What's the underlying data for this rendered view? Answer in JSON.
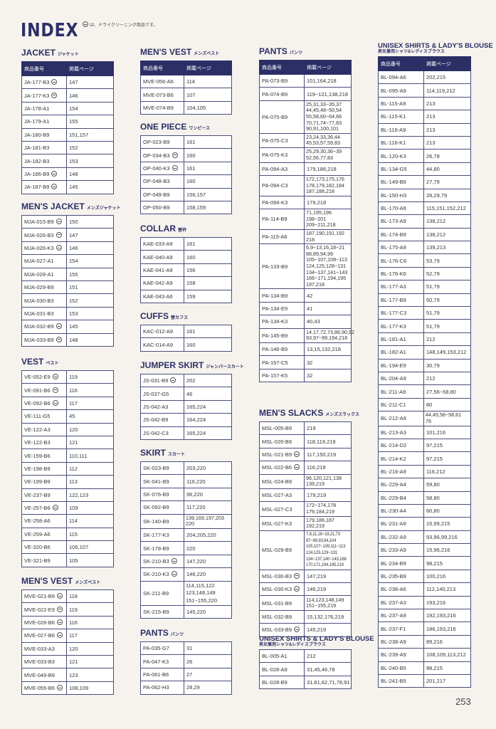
{
  "header": {
    "logo": "INDEX",
    "note": "は、ドライクリーニング商品です。"
  },
  "table_header": {
    "code": "商品番号",
    "pages": "掲載ページ"
  },
  "page_number": "253",
  "colors": {
    "navy": "#2c2f66",
    "background": "#f6f3ee"
  },
  "columns": [
    [
      {
        "title": "JACKET",
        "subtitle": "ジャケット",
        "header": true,
        "rows": [
          {
            "code": "JA-177-B3",
            "pages": "147",
            "dry": true
          },
          {
            "code": "JA-177-K3",
            "pages": "146",
            "dry": true
          },
          {
            "code": "JA-178-A1",
            "pages": "154"
          },
          {
            "code": "JA-179-A1",
            "pages": "155"
          },
          {
            "code": "JA-180-B9",
            "pages": "151,157"
          },
          {
            "code": "JA-181-B3",
            "pages": "152"
          },
          {
            "code": "JA-182-B3",
            "pages": "153"
          },
          {
            "code": "JA-186-B9",
            "pages": "148",
            "dry": true
          },
          {
            "code": "JA-187-B9",
            "pages": "145",
            "dry": true
          }
        ]
      },
      {
        "title": "MEN'S JACKET",
        "subtitle": "メンズジャケット",
        "rows": [
          {
            "code": "MJA-015-B9",
            "pages": "150",
            "dry": true
          },
          {
            "code": "MJA-026-B3",
            "pages": "147",
            "dry": true
          },
          {
            "code": "MJA-026-K3",
            "pages": "146",
            "dry": true
          },
          {
            "code": "MJA-027-A1",
            "pages": "154"
          },
          {
            "code": "MJA-028-A1",
            "pages": "155"
          },
          {
            "code": "MJA-029-B9",
            "pages": "151"
          },
          {
            "code": "MJA-030-B3",
            "pages": "152"
          },
          {
            "code": "MJA-031-B3",
            "pages": "153"
          },
          {
            "code": "MJA-032-B9",
            "pages": "145",
            "dry": true
          },
          {
            "code": "MJA-033-B9",
            "pages": "148",
            "dry": true
          }
        ]
      },
      {
        "title": "VEST",
        "subtitle": "ベスト",
        "rows": [
          {
            "code": "VE-052-E9",
            "pages": "119",
            "dry": true
          },
          {
            "code": "VE-091-B6",
            "pages": "116",
            "dry": true
          },
          {
            "code": "VE-092-B6",
            "pages": "117",
            "dry": true
          },
          {
            "code": "VE-111-G5",
            "pages": "45"
          },
          {
            "code": "VE-122-A3",
            "pages": "120"
          },
          {
            "code": "VE-122-B3",
            "pages": "121"
          },
          {
            "code": "VE-159-B6",
            "pages": "110,111"
          },
          {
            "code": "VE-198-B9",
            "pages": "112"
          },
          {
            "code": "VE-199-B9",
            "pages": "113"
          },
          {
            "code": "VE-237-B9",
            "pages": "122,123"
          },
          {
            "code": "VE-257-B6",
            "pages": "109",
            "dry": true
          },
          {
            "code": "VE-258-A6",
            "pages": "114"
          },
          {
            "code": "VE-259-A6",
            "pages": "115"
          },
          {
            "code": "VE-320-B6",
            "pages": "106,107"
          },
          {
            "code": "VE-321-B9",
            "pages": "105"
          }
        ]
      },
      {
        "title": "MEN'S VEST",
        "subtitle": "メンズベスト",
        "rows": [
          {
            "code": "MVE-021-B9",
            "pages": "118",
            "dry": true
          },
          {
            "code": "MVE-022-E9",
            "pages": "119",
            "dry": true
          },
          {
            "code": "MVE-026-B6",
            "pages": "116",
            "dry": true
          },
          {
            "code": "MVE-027-B6",
            "pages": "117",
            "dry": true
          },
          {
            "code": "MVE-033-A3",
            "pages": "120"
          },
          {
            "code": "MVE-033-B3",
            "pages": "121"
          },
          {
            "code": "MVE-049-B9",
            "pages": "123"
          },
          {
            "code": "MVE-055-B6",
            "pages": "108,109",
            "dry": true
          }
        ]
      }
    ],
    [
      {
        "title": "MEN'S VEST",
        "subtitle": "メンズベスト",
        "header": true,
        "rows": [
          {
            "code": "MVE-056-A6",
            "pages": "114"
          },
          {
            "code": "MVE-073-B6",
            "pages": "107"
          },
          {
            "code": "MVE-074-B9",
            "pages": "104,105"
          }
        ]
      },
      {
        "title": "ONE PIECE",
        "subtitle": "ワンピース",
        "rows": [
          {
            "code": "OP-023-B9",
            "pages": "161"
          },
          {
            "code": "OP-034-B3",
            "pages": "160",
            "dry": true
          },
          {
            "code": "OP-040-K3",
            "pages": "161",
            "dry": true
          },
          {
            "code": "OP-048-B3",
            "pages": "160"
          },
          {
            "code": "OP-049-B9",
            "pages": "156,157"
          },
          {
            "code": "OP-050-B9",
            "pages": "158,159"
          }
        ]
      },
      {
        "title": "COLLAR",
        "subtitle": "替衿",
        "rows": [
          {
            "code": "KAE-033-A9",
            "pages": "161"
          },
          {
            "code": "KAE-040-A9",
            "pages": "160"
          },
          {
            "code": "KAE-041-A9",
            "pages": "156"
          },
          {
            "code": "KAE-042-A9",
            "pages": "158"
          },
          {
            "code": "KAE-043-A6",
            "pages": "159"
          }
        ]
      },
      {
        "title": "CUFFS",
        "subtitle": "替カフス",
        "rows": [
          {
            "code": "KAC-012-A9",
            "pages": "161"
          },
          {
            "code": "KAC-014-A9",
            "pages": "160"
          }
        ]
      },
      {
        "title": "JUMPER SKIRT",
        "subtitle": "ジャンパースカート",
        "rows": [
          {
            "code": "JS-031-B9",
            "pages": "202",
            "dry": true
          },
          {
            "code": "JS-037-G5",
            "pages": "46"
          },
          {
            "code": "JS-042-A3",
            "pages": "165,224"
          },
          {
            "code": "JS-042-B9",
            "pages": "164,224"
          },
          {
            "code": "JS-042-C3",
            "pages": "165,224"
          }
        ]
      },
      {
        "title": "SKIRT",
        "subtitle": "スカート",
        "rows": [
          {
            "code": "SK-023-B9",
            "pages": "203,220"
          },
          {
            "code": "SK-041-B9",
            "pages": "116,220"
          },
          {
            "code": "SK-076-B9",
            "pages": "96,220"
          },
          {
            "code": "SK-092-B9",
            "pages": "117,220"
          },
          {
            "code": "SK-140-B9",
            "pages": "139,169,197,203\n220"
          },
          {
            "code": "SK-177-K3",
            "pages": "204,205,220"
          },
          {
            "code": "SK-178-B9",
            "pages": "220"
          },
          {
            "code": "SK-210-B3",
            "pages": "147,220",
            "dry": true
          },
          {
            "code": "SK-210-K3",
            "pages": "146,220",
            "dry": true
          },
          {
            "code": "SK-211-B9",
            "pages": "114,115,122\n123,148,149\n151~155,220"
          },
          {
            "code": "SK-215-B9",
            "pages": "145,220"
          }
        ]
      },
      {
        "title": "PANTS",
        "subtitle": "パンツ",
        "rows": [
          {
            "code": "PA-035-G7",
            "pages": "31"
          },
          {
            "code": "PA-047-K3",
            "pages": "26"
          },
          {
            "code": "PA-061-B6",
            "pages": "27"
          },
          {
            "code": "PA-062-H3",
            "pages": "28,29"
          }
        ]
      }
    ],
    [
      {
        "title": "PANTS",
        "subtitle": "パンツ",
        "header": true,
        "rows": [
          {
            "code": "PA-073-B9",
            "pages": "101,164,218"
          },
          {
            "code": "PA-074-B9",
            "pages": "119~121,138,218"
          },
          {
            "code": "PA-075-B9",
            "pages": "25,31,33~35,37\n44,45,48~50,54\n55,58,60~64,66\n70,71,74~77,83\n90,91,100,101"
          },
          {
            "code": "PA-075-C3",
            "pages": "23,24,33,36,44\n45,53,57,59,83"
          },
          {
            "code": "PA-075-K3",
            "pages": "25,29,30,36~39\n52,56,77,83"
          },
          {
            "code": "PA-094-A3",
            "pages": "179,186,218"
          },
          {
            "code": "PA-094-C3",
            "pages": "172,173,175,176\n178,179,182,184\n187,188,218"
          },
          {
            "code": "PA-094-K3",
            "pages": "179,218"
          },
          {
            "code": "PA-114-B9",
            "pages": "71,195,196\n198~201\n209~211,218"
          },
          {
            "code": "PA-115-A6",
            "pages": "187,190,191,192\n218"
          },
          {
            "code": "PA-133-B9",
            "pages": "6,9~13,16,18~21\n88,89,94,99\n105~107,109~113\n124,125,128~131\n134~137,141~143\n166~171,194,195\n197,218"
          },
          {
            "code": "PA-134-B9",
            "pages": "42"
          },
          {
            "code": "PA-134-E9",
            "pages": "41"
          },
          {
            "code": "PA-134-K3",
            "pages": "40,43"
          },
          {
            "code": "PA-145-B9",
            "pages": "14,17,72,73,86,90,92\n93,97~99,194,218"
          },
          {
            "code": "PA-146-B9",
            "pages": "13,15,132,218"
          },
          {
            "code": "PA-157-C5",
            "pages": "32"
          },
          {
            "code": "PA-157-K5",
            "pages": "32"
          }
        ]
      },
      {
        "title": "MEN'S SLACKS",
        "subtitle": "メンズスラックス",
        "rows": [
          {
            "code": "MSL-005-B9",
            "pages": "219"
          },
          {
            "code": "MSL-020-B9",
            "pages": "118,119,219"
          },
          {
            "code": "MSL-021-B9",
            "pages": "117,150,219",
            "dry": true
          },
          {
            "code": "MSL-022-B6",
            "pages": "116,219",
            "dry": true
          },
          {
            "code": "MSL-024-B9",
            "pages": "96,120,121,138\n139,219"
          },
          {
            "code": "MSL-027-A3",
            "pages": "179,219"
          },
          {
            "code": "MSL-027-C3",
            "pages": "172~174,178\n179,184,219"
          },
          {
            "code": "MSL-027-K3",
            "pages": "179,186,187\n192,219"
          },
          {
            "code": "MSL-029-B9",
            "pages": "7,8,11,16~19,21,73\n87~89,93,94,104\n105,107~109,111~113\n124,125,129~131\n134~137,140~143,168\n170,171,194,195,219"
          },
          {
            "code": "MSL-030-B3",
            "pages": "147,219",
            "dry": true
          },
          {
            "code": "MSL-030-K3",
            "pages": "146,219",
            "dry": true
          },
          {
            "code": "MSL-031-B9",
            "pages": "114,123,148,149\n151~155,219"
          },
          {
            "code": "MSL-032-B9",
            "pages": "15,132,176,219"
          },
          {
            "code": "MSL-033-B9",
            "pages": "145,219",
            "dry": true
          }
        ]
      },
      {
        "title": "UNISEX SHIRTS & LADY'S BLOUSE",
        "subtitle": "男女兼用シャツ&レディスブラウス",
        "small": true,
        "rows": [
          {
            "code": "BL-005-A1",
            "pages": "212"
          },
          {
            "code": "BL-028-A9",
            "pages": "31,45,46,78"
          },
          {
            "code": "BL-028-B9",
            "pages": "31,61,62,71,78,91"
          }
        ]
      }
    ],
    [
      {
        "title": "UNISEX SHIRTS & LADY'S BLOUSE",
        "subtitle": "男女兼用シャツ&レディスブラウス",
        "small": true,
        "header": true,
        "rows": [
          {
            "code": "BL-094-A6",
            "pages": "202,215"
          },
          {
            "code": "BL-095-A9",
            "pages": "114,119,212"
          },
          {
            "code": "BL-115-A9",
            "pages": "213"
          },
          {
            "code": "BL-115-K1",
            "pages": "213"
          },
          {
            "code": "BL-116-A9",
            "pages": "213"
          },
          {
            "code": "BL-116-K1",
            "pages": "213"
          },
          {
            "code": "BL-120-K3",
            "pages": "26,78"
          },
          {
            "code": "BL-134-G5",
            "pages": "44,80"
          },
          {
            "code": "BL-149-B6",
            "pages": "27,79"
          },
          {
            "code": "BL-150-H3",
            "pages": "28,29,79"
          },
          {
            "code": "BL-170-A9",
            "pages": "115,151,152,212"
          },
          {
            "code": "BL-173-A9",
            "pages": "138,212"
          },
          {
            "code": "BL-174-B9",
            "pages": "138,212"
          },
          {
            "code": "BL-175-A9",
            "pages": "139,213"
          },
          {
            "code": "BL-176-C6",
            "pages": "53,79"
          },
          {
            "code": "BL-176-K6",
            "pages": "52,79"
          },
          {
            "code": "BL-177-A3",
            "pages": "51,79"
          },
          {
            "code": "BL-177-B9",
            "pages": "50,79"
          },
          {
            "code": "BL-177-C3",
            "pages": "51,79"
          },
          {
            "code": "BL-177-K3",
            "pages": "51,79"
          },
          {
            "code": "BL-181-A1",
            "pages": "212"
          },
          {
            "code": "BL-182-A1",
            "pages": "148,149,153,212"
          },
          {
            "code": "BL-194-E9",
            "pages": "30,79"
          },
          {
            "code": "BL-204-A9",
            "pages": "212"
          },
          {
            "code": "BL-211-A9",
            "pages": "27,56~58,80"
          },
          {
            "code": "BL-211-C1",
            "pages": "80"
          },
          {
            "code": "BL-212-A9",
            "pages": "44,45,56~58,61\n78"
          },
          {
            "code": "BL-213-A3",
            "pages": "101,216"
          },
          {
            "code": "BL-214-D2",
            "pages": "97,215"
          },
          {
            "code": "BL-214-K2",
            "pages": "97,215"
          },
          {
            "code": "BL-216-A9",
            "pages": "116,212"
          },
          {
            "code": "BL-229-A4",
            "pages": "59,80"
          },
          {
            "code": "BL-229-B4",
            "pages": "58,80"
          },
          {
            "code": "BL-230-A4",
            "pages": "60,80"
          },
          {
            "code": "BL-231-A9",
            "pages": "15,99,215"
          },
          {
            "code": "BL-232-A9",
            "pages": "93,96,99,216"
          },
          {
            "code": "BL-233-A9",
            "pages": "15,96,216"
          },
          {
            "code": "BL-234-B9",
            "pages": "98,215"
          },
          {
            "code": "BL-235-B9",
            "pages": "100,216"
          },
          {
            "code": "BL-236-A6",
            "pages": "112,140,213"
          },
          {
            "code": "BL-237-A3",
            "pages": "193,216"
          },
          {
            "code": "BL-237-A9",
            "pages": "192,193,216"
          },
          {
            "code": "BL-237-F1",
            "pages": "186,193,216"
          },
          {
            "code": "BL-238-A9",
            "pages": "89,216"
          },
          {
            "code": "BL-239-A9",
            "pages": "108,109,113,212"
          },
          {
            "code": "BL-240-B5",
            "pages": "98,215"
          },
          {
            "code": "BL-241-B5",
            "pages": "201,217"
          }
        ]
      }
    ]
  ]
}
